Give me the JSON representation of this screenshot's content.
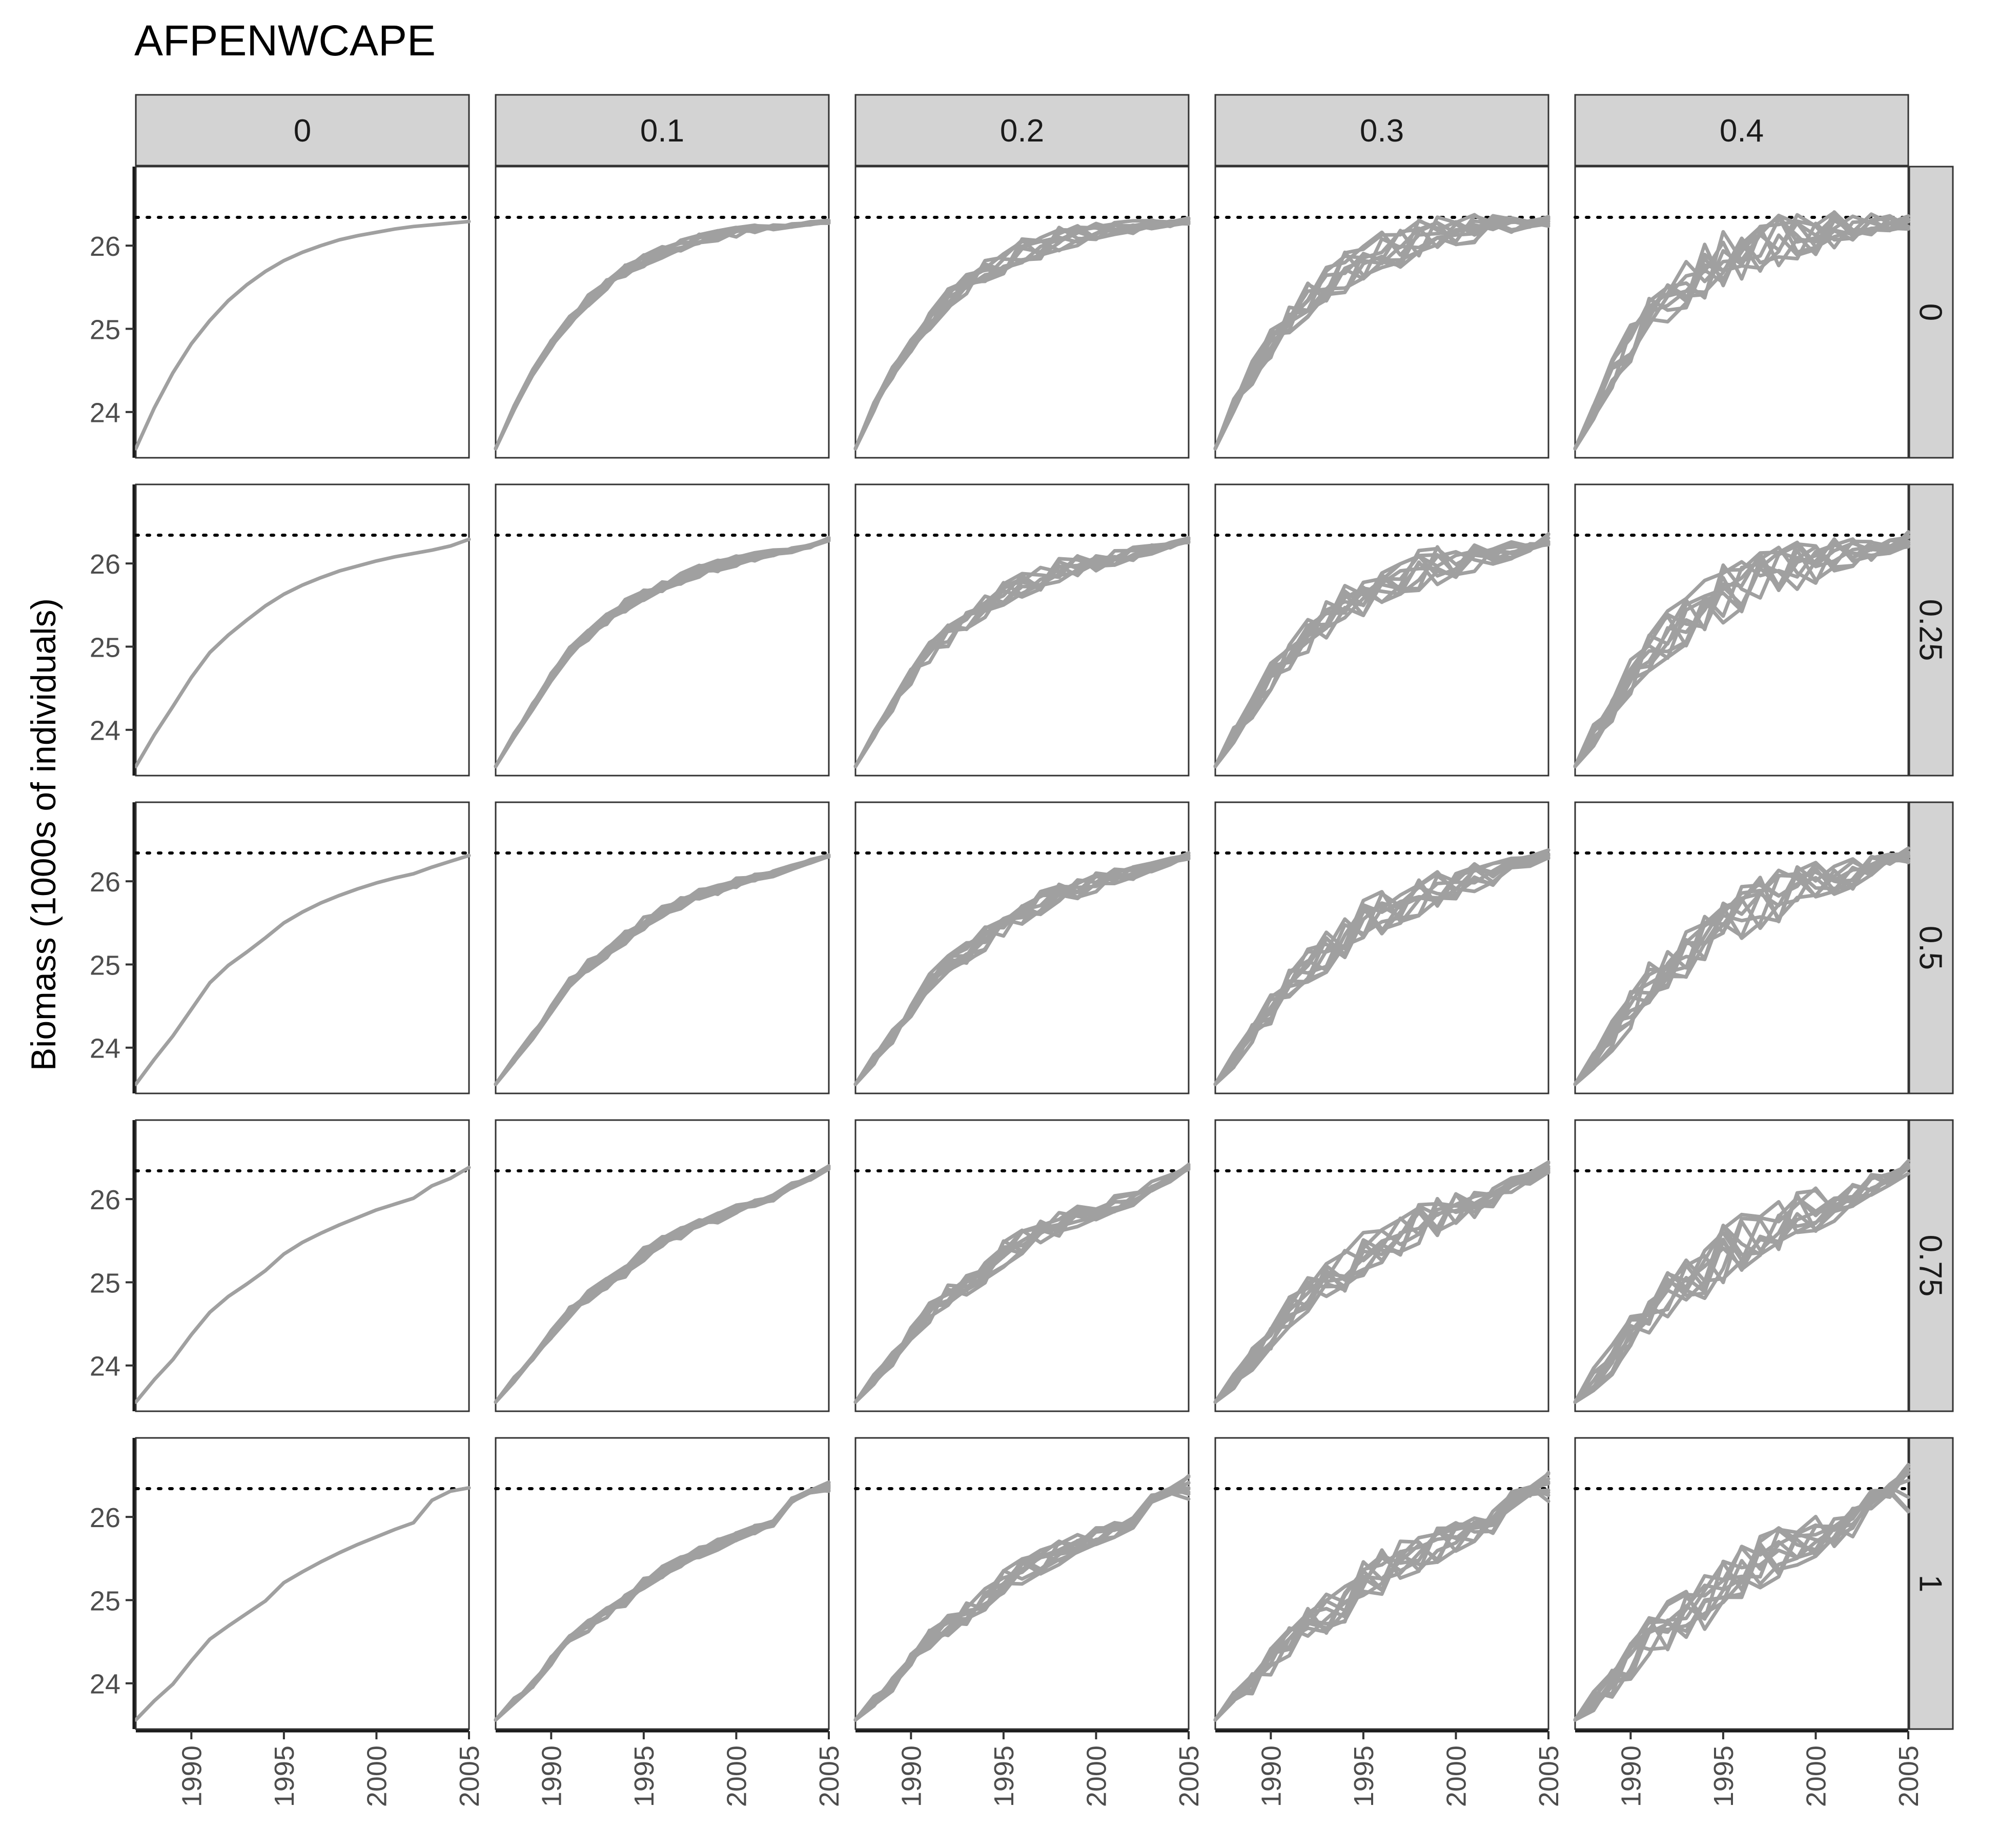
{
  "chart_data": {
    "type": "line",
    "title": "AFPENWCAPE",
    "xlabel": "",
    "ylabel": "Biomass (1000s of individuals)",
    "column_facets": [
      "0",
      "0.1",
      "0.2",
      "0.3",
      "0.4"
    ],
    "row_facets": [
      "0",
      "0.25",
      "0.5",
      "0.75",
      "1"
    ],
    "xlim": [
      1987,
      2005
    ],
    "ylim": [
      23.45,
      26.95
    ],
    "x_ticks": [
      1990,
      1995,
      2000,
      2005
    ],
    "y_ticks": [
      24,
      25,
      26
    ],
    "reference_line": {
      "y": 26.34,
      "style": "dotted",
      "color": "#000000"
    },
    "series_color": "#a0a0a0",
    "runs_per_panel": 10,
    "years": [
      1987,
      1988,
      1989,
      1990,
      1991,
      1992,
      1993,
      1994,
      1995,
      1996,
      1997,
      1998,
      1999,
      2000,
      2001,
      2002,
      2003,
      2004,
      2005
    ],
    "series": [
      {
        "name": "",
        "column": "0",
        "row": "0",
        "values": [
          23.56,
          24.05,
          24.47,
          24.82,
          25.1,
          25.34,
          25.53,
          25.69,
          25.82,
          25.92,
          26.0,
          26.07,
          26.12,
          26.16,
          26.2,
          26.23,
          26.25,
          26.27,
          26.29
        ]
      },
      {
        "name": "",
        "column": "0",
        "row": "0.25",
        "values": [
          23.56,
          23.94,
          24.28,
          24.63,
          24.93,
          25.14,
          25.32,
          25.49,
          25.63,
          25.74,
          25.83,
          25.91,
          25.97,
          26.03,
          26.08,
          26.12,
          26.16,
          26.21,
          26.29
        ]
      },
      {
        "name": "",
        "column": "0",
        "row": "0.5",
        "values": [
          23.56,
          23.86,
          24.14,
          24.46,
          24.78,
          24.99,
          25.15,
          25.32,
          25.5,
          25.63,
          25.74,
          25.83,
          25.91,
          25.98,
          26.04,
          26.09,
          26.17,
          26.24,
          26.31
        ]
      },
      {
        "name": "",
        "column": "0",
        "row": "0.75",
        "values": [
          23.56,
          23.83,
          24.07,
          24.37,
          24.64,
          24.83,
          24.98,
          25.14,
          25.34,
          25.48,
          25.59,
          25.69,
          25.78,
          25.87,
          25.94,
          26.01,
          26.16,
          26.25,
          26.38
        ]
      },
      {
        "name": "",
        "column": "0",
        "row": "1",
        "values": [
          23.56,
          23.79,
          23.99,
          24.27,
          24.53,
          24.69,
          24.84,
          24.99,
          25.21,
          25.34,
          25.46,
          25.57,
          25.67,
          25.76,
          25.85,
          25.93,
          26.2,
          26.31,
          26.35
        ]
      }
    ]
  }
}
